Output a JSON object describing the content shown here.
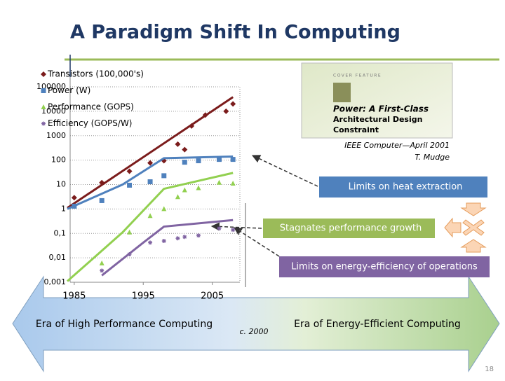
{
  "chart_data": {
    "type": "scatter",
    "title": "A Paradigm Shift In Computing",
    "log_y": true,
    "grid": true,
    "legend": "upper left",
    "xlim": [
      1984,
      2009
    ],
    "xticks": [
      1985,
      1995,
      2005
    ],
    "ylim": [
      0.001,
      100000
    ],
    "yticks": [
      {
        "value": 0.001,
        "label": "0,001"
      },
      {
        "value": 0.01,
        "label": "0,01"
      },
      {
        "value": 0.1,
        "label": "0,1"
      },
      1,
      10,
      100,
      1000,
      10000,
      100000
    ],
    "series": [
      {
        "name": "Transistors (100,000's)",
        "color": "#7b1c1c",
        "marker": "diamond",
        "x": [
          1985,
          1989,
          1993,
          1996,
          1998,
          2000,
          2001,
          2002,
          2004,
          2007,
          2008
        ],
        "values": [
          2.9,
          12,
          35,
          77,
          94,
          450,
          270,
          2500,
          7000,
          10000,
          20000
        ],
        "fit_x": [
          1984,
          2008
        ],
        "fit_values": [
          1.1,
          38000
        ]
      },
      {
        "name": "Power (W)",
        "color": "#4f81bd",
        "marker": "square",
        "x": [
          1985,
          1989,
          1993,
          1996,
          1998,
          2001,
          2003,
          2006,
          2008
        ],
        "values": [
          1.3,
          2.2,
          9.4,
          13,
          23,
          82,
          94,
          107,
          107
        ],
        "fit_x": [
          1984,
          1992,
          1998,
          2008
        ],
        "fit_values": [
          1,
          10,
          120,
          140
        ]
      },
      {
        "name": "Performance (GOPS)",
        "color": "#92d050",
        "marker": "triangle",
        "x": [
          1989,
          1993,
          1996,
          1998,
          2000,
          2001,
          2003,
          2006,
          2008
        ],
        "values": [
          0.006,
          0.11,
          0.52,
          1,
          3.1,
          5.9,
          7.2,
          12,
          11
        ],
        "fit_x": [
          1984,
          1992,
          1998,
          2008
        ],
        "fit_values": [
          0.0011,
          0.11,
          6.7,
          30
        ]
      },
      {
        "name": "Efficiency (GOPS/W)",
        "color": "#8064a2",
        "marker": "asterisk",
        "x": [
          1989,
          1993,
          1996,
          1998,
          2000,
          2001,
          2003,
          2006,
          2008
        ],
        "values": [
          0.003,
          0.014,
          0.042,
          0.049,
          0.063,
          0.072,
          0.082,
          0.16,
          0.14
        ],
        "fit_x": [
          1989,
          1995,
          1998,
          2008
        ],
        "fit_values": [
          0.0019,
          0.042,
          0.19,
          0.35
        ]
      }
    ]
  },
  "cover": {
    "kicker": "COVER FEATURE",
    "headline": [
      "Power: A First-Class",
      "Architectural Design",
      "Constraint"
    ],
    "caption": [
      "IEEE Computer—April 2001",
      "T. Mudge"
    ]
  },
  "callouts": [
    "Limits on heat extraction",
    "Stagnates performance growth",
    "Limits on energy-efficiency of operations"
  ],
  "eras": {
    "left": "Era of High Performance Computing",
    "middle": "c. 2000",
    "right": "Era of Energy-Efficient Computing"
  },
  "page_number": "18"
}
